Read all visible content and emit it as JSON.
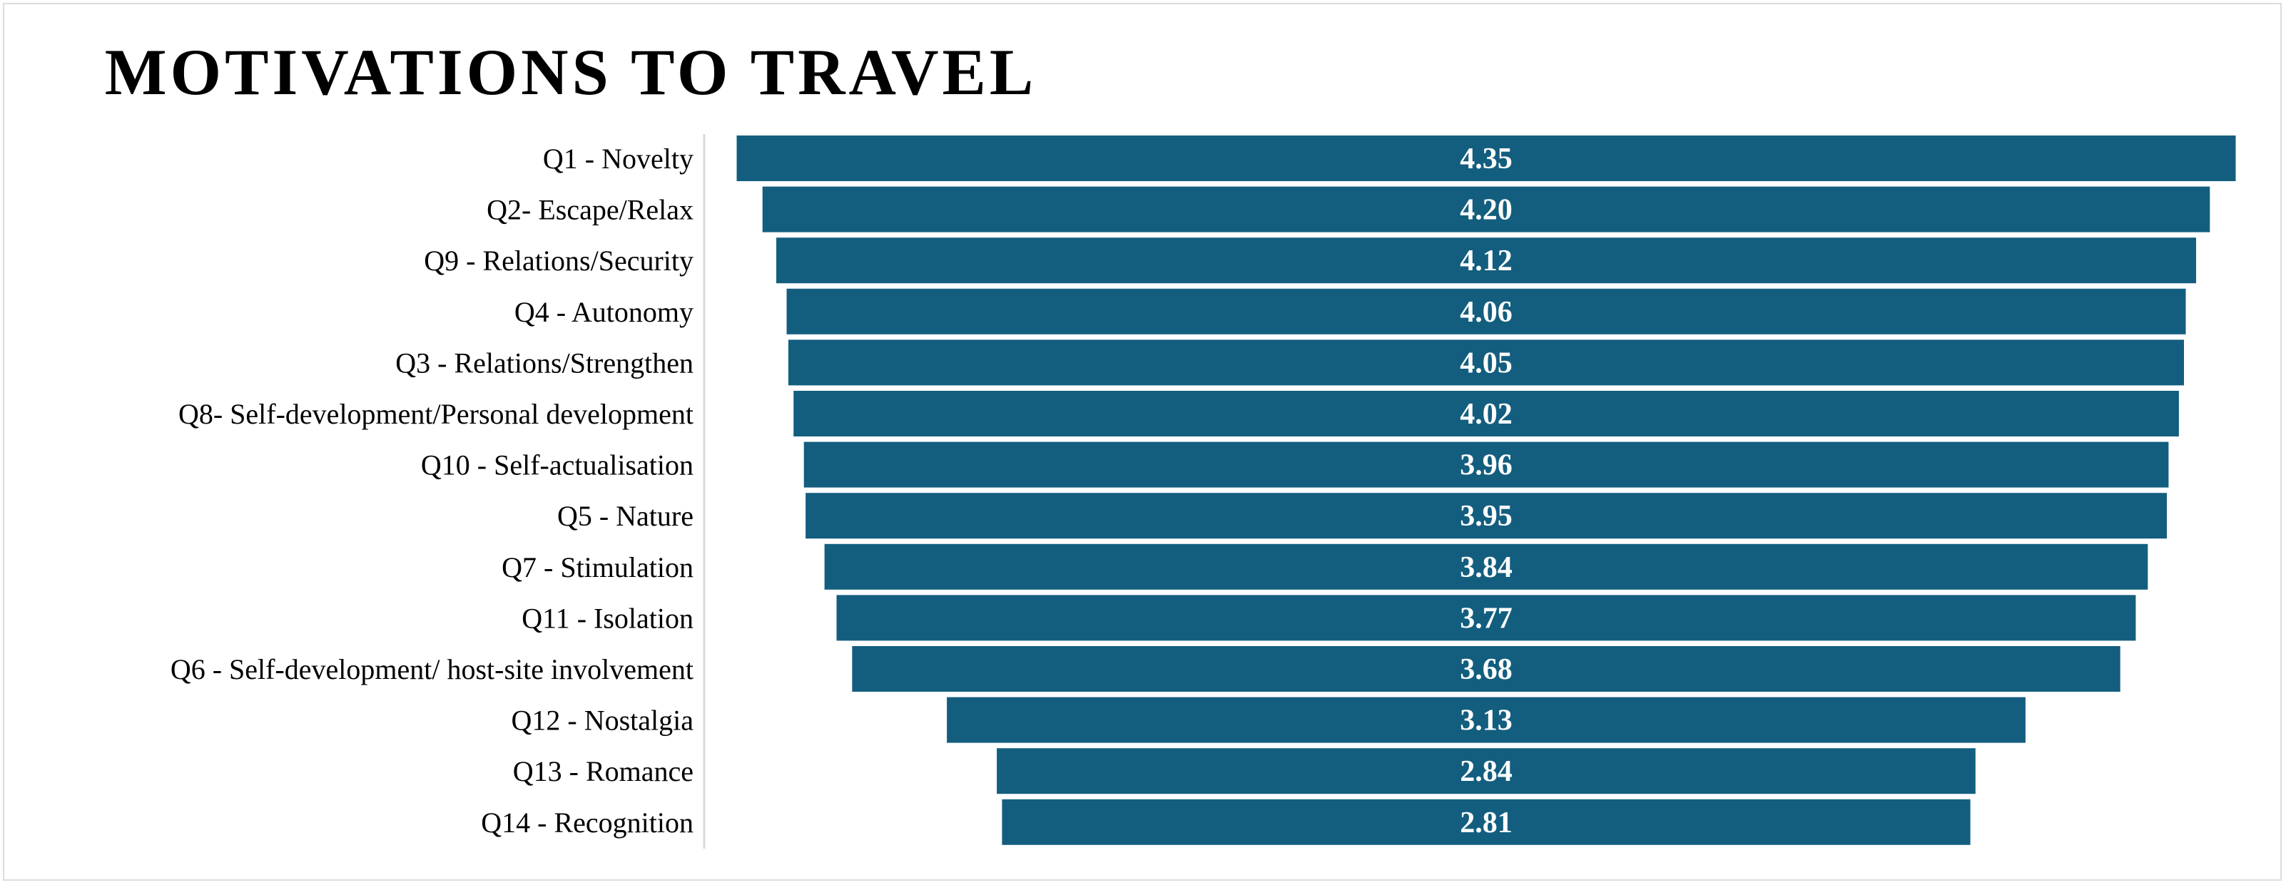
{
  "chart_data": {
    "type": "bar",
    "title": "MOTIVATIONS TO TRAVEL",
    "xlabel": "",
    "ylabel": "",
    "orientation": "horizontal-centered (funnel)",
    "grid": false,
    "legend": "none",
    "bar_color": "#135E7F",
    "categories": [
      "Q1 - Novelty",
      "Q2- Escape/Relax",
      "Q9 - Relations/Security",
      "Q4 - Autonomy",
      "Q3 - Relations/Strengthen",
      "Q8- Self-development/Personal development",
      "Q10 - Self-actualisation",
      "Q5 - Nature",
      "Q7 - Stimulation",
      "Q11 - Isolation",
      "Q6 - Self-development/ host-site involvement",
      "Q12 - Nostalgia",
      "Q13 - Romance",
      "Q14 - Recognition"
    ],
    "values": [
      4.35,
      4.2,
      4.12,
      4.06,
      4.05,
      4.02,
      3.96,
      3.95,
      3.84,
      3.77,
      3.68,
      3.13,
      2.84,
      2.81
    ],
    "value_labels": [
      "4.35",
      "4.20",
      "4.12",
      "4.06",
      "4.05",
      "4.02",
      "3.96",
      "3.95",
      "3.84",
      "3.77",
      "3.68",
      "3.13",
      "2.84",
      "2.81"
    ]
  }
}
